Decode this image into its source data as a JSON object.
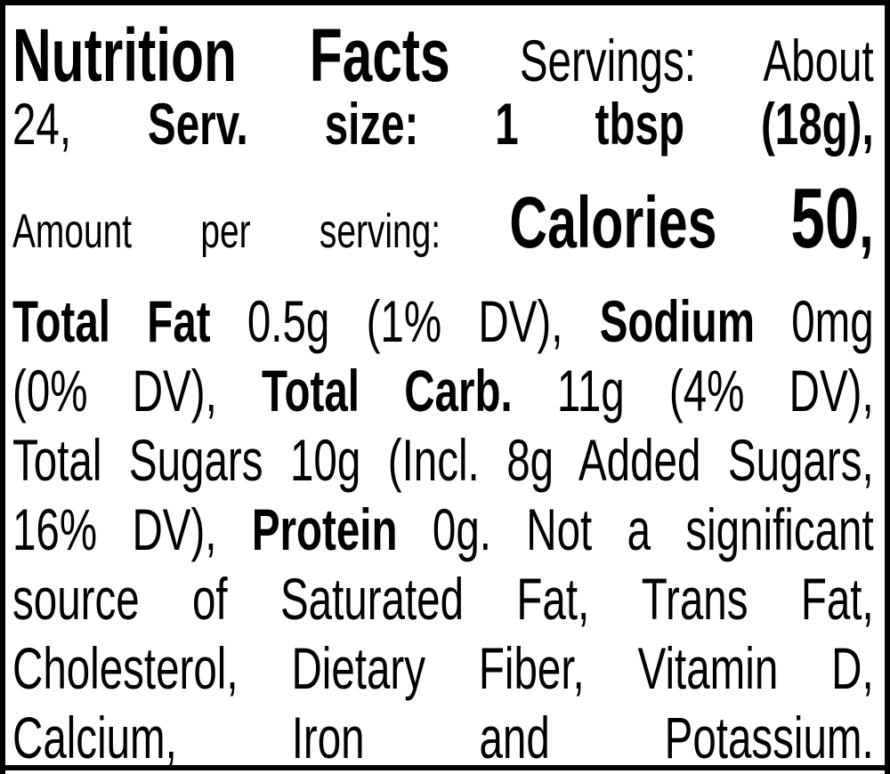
{
  "lines": [
    {
      "size": 84,
      "segments": [
        {
          "text": "Nutrition Facts",
          "bold": true
        },
        {
          "text": " Servings: About",
          "bold": false,
          "size": 66
        }
      ]
    },
    {
      "size": 66,
      "segments": [
        {
          "text": "24, ",
          "bold": false
        },
        {
          "text": "Serv. size: 1 tbsp (18g),",
          "bold": true
        }
      ]
    },
    {
      "size": 54,
      "segments": [
        {
          "text": "Amount per serving: ",
          "bold": false
        },
        {
          "text": "Calories ",
          "bold": true,
          "size": 82
        },
        {
          "text": "50",
          "bold": true,
          "size": 96
        },
        {
          "text": ",",
          "bold": true,
          "size": 82
        }
      ]
    },
    {
      "size": 66,
      "segments": [
        {
          "text": "Total Fat",
          "bold": true
        },
        {
          "text": " 0.5g (1% DV), ",
          "bold": false
        },
        {
          "text": "Sodium",
          "bold": true
        },
        {
          "text": " 0mg",
          "bold": false
        }
      ]
    },
    {
      "size": 66,
      "segments": [
        {
          "text": "(0% DV), ",
          "bold": false
        },
        {
          "text": "Total Carb.",
          "bold": true
        },
        {
          "text": " 11g (4% DV),",
          "bold": false
        }
      ]
    },
    {
      "size": 66,
      "segments": [
        {
          "text": "Total Sugars 10g (Incl. 8g Added Sugars,",
          "bold": false
        }
      ]
    },
    {
      "size": 66,
      "segments": [
        {
          "text": "16% DV), ",
          "bold": false
        },
        {
          "text": "Protein",
          "bold": true
        },
        {
          "text": " 0g. Not a significant",
          "bold": false
        }
      ]
    },
    {
      "size": 66,
      "segments": [
        {
          "text": "source of Saturated Fat, Trans Fat,",
          "bold": false
        }
      ]
    },
    {
      "size": 66,
      "segments": [
        {
          "text": "Cholesterol, Dietary Fiber, Vitamin D,",
          "bold": false
        }
      ]
    },
    {
      "size": 66,
      "segments": [
        {
          "text": "Calcium, Iron and Potassium.",
          "bold": false
        }
      ]
    }
  ]
}
